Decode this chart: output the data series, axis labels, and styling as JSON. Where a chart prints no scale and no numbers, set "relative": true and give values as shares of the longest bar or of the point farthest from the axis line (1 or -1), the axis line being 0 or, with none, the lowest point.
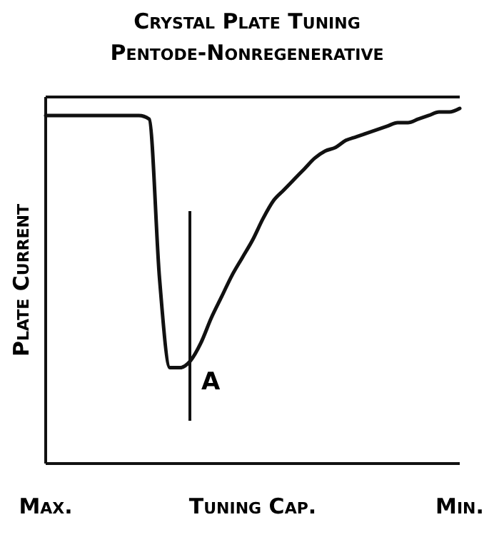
{
  "chart_data": {
    "type": "line",
    "title": "Crystal Plate Tuning",
    "subtitle": "Pentode-Nonregenerative",
    "xlabel": "Tuning Cap.",
    "ylabel": "Plate Current",
    "relative": true,
    "categories": [
      "Max.",
      null,
      null,
      null,
      null,
      null,
      null,
      null,
      null,
      null,
      null,
      null,
      null,
      null,
      null,
      null,
      null,
      null,
      null,
      null,
      null,
      null,
      null,
      null,
      null,
      null,
      null,
      null,
      null,
      null,
      null,
      null,
      null,
      null,
      null,
      null,
      null,
      null,
      null,
      null,
      "Min."
    ],
    "series": [
      {
        "color": "#111111",
        "values": [
          0.98,
          0.98,
          0.98,
          0.98,
          0.98,
          0.98,
          0.98,
          0.98,
          0.98,
          0.98,
          0.97,
          0.52,
          0.27,
          0.27,
          0.29,
          0.34,
          0.41,
          0.47,
          0.53,
          0.58,
          0.63,
          0.69,
          0.74,
          0.77,
          0.8,
          0.83,
          0.86,
          0.88,
          0.89,
          0.91,
          0.92,
          0.93,
          0.94,
          0.95,
          0.96,
          0.96,
          0.97,
          0.98,
          0.99,
          0.99,
          1
        ]
      }
    ],
    "annotations": [
      "A"
    ]
  }
}
